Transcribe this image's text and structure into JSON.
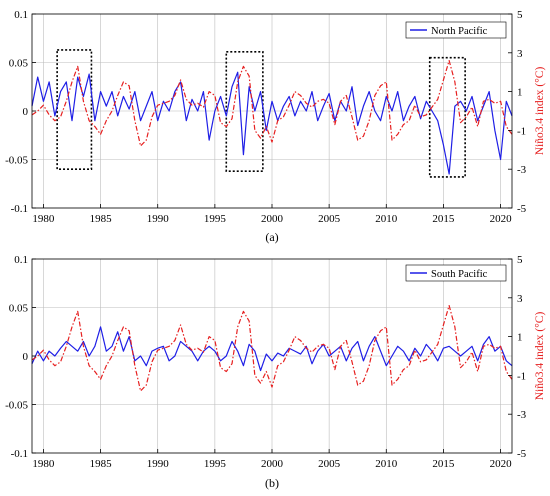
{
  "figure": {
    "panels": [
      {
        "caption": "(a)",
        "legend_label": "North Pacific",
        "right_axis_label": "Niño3.4 index (°C)"
      },
      {
        "caption": "(b)",
        "legend_label": "South Pacific",
        "right_axis_label": "Niño3.4 index (°C)"
      }
    ]
  },
  "chart_data": [
    {
      "type": "line",
      "title": "",
      "caption": "(a)",
      "xlabel": "",
      "ylabel": "",
      "y2label": "Niño3.4 index (°C)",
      "xlim": [
        1979,
        2021
      ],
      "ylim": [
        -0.1,
        0.1
      ],
      "y2lim": [
        -5,
        5
      ],
      "xticks": [
        1980,
        1985,
        1990,
        1995,
        2000,
        2005,
        2010,
        2015,
        2020
      ],
      "yticks": [
        -0.1,
        -0.05,
        0,
        0.05,
        0.1
      ],
      "yticklabels": [
        "-0.1",
        "-0.05",
        "0",
        "0.05",
        "0.1"
      ],
      "y2ticks": [
        -5,
        -3,
        -1,
        1,
        3,
        5
      ],
      "grid": true,
      "legend_position": "top-right",
      "highlight_boxes": [
        {
          "x": [
            1981.2,
            1984.2
          ],
          "y": [
            -0.06,
            0.063
          ]
        },
        {
          "x": [
            1996.0,
            1999.2
          ],
          "y": [
            -0.062,
            0.061
          ]
        },
        {
          "x": [
            2013.8,
            2016.9
          ],
          "y": [
            -0.068,
            0.055
          ]
        }
      ],
      "series": [
        {
          "name": "North Pacific",
          "axis": "left",
          "color": "#1f1fe6",
          "style": "solid",
          "x": [
            1979.0,
            1979.5,
            1980.0,
            1980.5,
            1981.0,
            1981.5,
            1982.0,
            1982.5,
            1983.0,
            1983.5,
            1984.0,
            1984.5,
            1985.0,
            1985.5,
            1986.0,
            1986.5,
            1987.0,
            1987.5,
            1988.0,
            1988.5,
            1989.0,
            1989.5,
            1990.0,
            1990.5,
            1991.0,
            1991.5,
            1992.0,
            1992.5,
            1993.0,
            1993.5,
            1994.0,
            1994.5,
            1995.0,
            1995.5,
            1996.0,
            1996.5,
            1997.0,
            1997.5,
            1998.0,
            1998.5,
            1999.0,
            1999.5,
            2000.0,
            2000.5,
            2001.0,
            2001.5,
            2002.0,
            2002.5,
            2003.0,
            2003.5,
            2004.0,
            2004.5,
            2005.0,
            2005.5,
            2006.0,
            2006.5,
            2007.0,
            2007.5,
            2008.0,
            2008.5,
            2009.0,
            2009.5,
            2010.0,
            2010.5,
            2011.0,
            2011.5,
            2012.0,
            2012.5,
            2013.0,
            2013.5,
            2014.0,
            2014.5,
            2015.0,
            2015.5,
            2016.0,
            2016.5,
            2017.0,
            2017.5,
            2018.0,
            2018.5,
            2019.0,
            2019.5,
            2020.0,
            2020.5,
            2021.0
          ],
          "values": [
            0.005,
            0.035,
            0.01,
            0.03,
            -0.005,
            0.02,
            0.03,
            -0.01,
            0.035,
            0.015,
            0.038,
            -0.01,
            0.02,
            0.005,
            0.02,
            -0.005,
            0.015,
            0.002,
            0.02,
            -0.01,
            0.005,
            0.02,
            -0.01,
            0.01,
            0.0,
            0.02,
            0.03,
            -0.01,
            0.012,
            0.0,
            0.02,
            -0.03,
            0.0,
            0.015,
            -0.005,
            0.025,
            0.04,
            -0.045,
            0.025,
            0.0,
            0.02,
            -0.02,
            0.01,
            -0.01,
            0.005,
            0.015,
            -0.005,
            0.01,
            0.0,
            0.02,
            -0.01,
            0.005,
            0.018,
            -0.01,
            0.01,
            0.0,
            0.025,
            -0.015,
            0.005,
            0.02,
            0.0,
            -0.01,
            0.015,
            0.0,
            0.02,
            -0.01,
            0.005,
            0.015,
            -0.008,
            0.01,
            0.0,
            -0.01,
            -0.035,
            -0.065,
            0.005,
            0.01,
            0.0,
            0.015,
            -0.01,
            0.005,
            0.02,
            -0.02,
            -0.05,
            0.01,
            -0.005
          ]
        },
        {
          "name": "Niño3.4 index",
          "axis": "right",
          "color": "#e62020",
          "style": "dash-dot",
          "x": [
            1979.0,
            1979.5,
            1980.0,
            1980.5,
            1981.0,
            1981.5,
            1982.0,
            1982.5,
            1983.0,
            1983.5,
            1984.0,
            1984.5,
            1985.0,
            1985.5,
            1986.0,
            1986.5,
            1987.0,
            1987.5,
            1988.0,
            1988.5,
            1989.0,
            1989.5,
            1990.0,
            1990.5,
            1991.0,
            1991.5,
            1992.0,
            1992.5,
            1993.0,
            1993.5,
            1994.0,
            1994.5,
            1995.0,
            1995.5,
            1996.0,
            1996.5,
            1997.0,
            1997.5,
            1998.0,
            1998.5,
            1999.0,
            1999.5,
            2000.0,
            2000.5,
            2001.0,
            2001.5,
            2002.0,
            2002.5,
            2003.0,
            2003.5,
            2004.0,
            2004.5,
            2005.0,
            2005.5,
            2006.0,
            2006.5,
            2007.0,
            2007.5,
            2008.0,
            2008.5,
            2009.0,
            2009.5,
            2010.0,
            2010.5,
            2011.0,
            2011.5,
            2012.0,
            2012.5,
            2013.0,
            2013.5,
            2014.0,
            2014.5,
            2015.0,
            2015.5,
            2016.0,
            2016.5,
            2017.0,
            2017.5,
            2018.0,
            2018.5,
            2019.0,
            2019.5,
            2020.0,
            2020.5,
            2021.0
          ],
          "values": [
            -0.2,
            0.0,
            0.3,
            -0.2,
            -0.5,
            -0.3,
            0.5,
            1.5,
            2.3,
            0.5,
            -0.5,
            -0.8,
            -1.2,
            -0.5,
            0.0,
            0.8,
            1.5,
            1.3,
            -0.5,
            -1.8,
            -1.5,
            -0.3,
            0.3,
            0.4,
            0.5,
            0.8,
            1.6,
            0.6,
            0.3,
            0.4,
            0.2,
            1.0,
            0.8,
            -0.6,
            -0.8,
            -0.4,
            1.5,
            2.3,
            1.8,
            -1.0,
            -1.4,
            -0.8,
            -1.6,
            -0.5,
            -0.3,
            0.3,
            1.0,
            0.8,
            0.4,
            0.2,
            0.5,
            0.6,
            0.4,
            -0.7,
            0.5,
            0.8,
            -0.3,
            -1.5,
            -1.3,
            -0.5,
            0.8,
            1.3,
            1.5,
            -1.5,
            -1.2,
            -0.7,
            -0.5,
            0.3,
            -0.3,
            -0.2,
            0.2,
            0.6,
            1.6,
            2.6,
            1.5,
            -0.6,
            -0.3,
            0.2,
            -0.8,
            0.5,
            0.6,
            0.4,
            0.5,
            -0.8,
            -1.2
          ]
        }
      ]
    },
    {
      "type": "line",
      "title": "",
      "caption": "(b)",
      "xlabel": "",
      "ylabel": "",
      "y2label": "Niño3.4 index (°C)",
      "xlim": [
        1979,
        2021
      ],
      "ylim": [
        -0.1,
        0.1
      ],
      "y2lim": [
        -5,
        5
      ],
      "xticks": [
        1980,
        1985,
        1990,
        1995,
        2000,
        2005,
        2010,
        2015,
        2020
      ],
      "yticks": [
        -0.1,
        -0.05,
        0,
        0.05,
        0.1
      ],
      "yticklabels": [
        "-0.1",
        "-0.05",
        "0",
        "0.05",
        "0.1"
      ],
      "y2ticks": [
        -5,
        -3,
        -1,
        1,
        3,
        5
      ],
      "grid": true,
      "legend_position": "top-right",
      "highlight_boxes": [],
      "series": [
        {
          "name": "South Pacific",
          "axis": "left",
          "color": "#1f1fe6",
          "style": "solid",
          "x": [
            1979.0,
            1979.5,
            1980.0,
            1980.5,
            1981.0,
            1981.5,
            1982.0,
            1982.5,
            1983.0,
            1983.5,
            1984.0,
            1984.5,
            1985.0,
            1985.5,
            1986.0,
            1986.5,
            1987.0,
            1987.5,
            1988.0,
            1988.5,
            1989.0,
            1989.5,
            1990.0,
            1990.5,
            1991.0,
            1991.5,
            1992.0,
            1992.5,
            1993.0,
            1993.5,
            1994.0,
            1994.5,
            1995.0,
            1995.5,
            1996.0,
            1996.5,
            1997.0,
            1997.5,
            1998.0,
            1998.5,
            1999.0,
            1999.5,
            2000.0,
            2000.5,
            2001.0,
            2001.5,
            2002.0,
            2002.5,
            2003.0,
            2003.5,
            2004.0,
            2004.5,
            2005.0,
            2005.5,
            2006.0,
            2006.5,
            2007.0,
            2007.5,
            2008.0,
            2008.5,
            2009.0,
            2009.5,
            2010.0,
            2010.5,
            2011.0,
            2011.5,
            2012.0,
            2012.5,
            2013.0,
            2013.5,
            2014.0,
            2014.5,
            2015.0,
            2015.5,
            2016.0,
            2016.5,
            2017.0,
            2017.5,
            2018.0,
            2018.5,
            2019.0,
            2019.5,
            2020.0,
            2020.5,
            2021.0
          ],
          "values": [
            -0.008,
            0.005,
            -0.005,
            0.005,
            0.0,
            0.008,
            0.015,
            0.01,
            0.005,
            0.015,
            0.0,
            0.01,
            0.03,
            0.005,
            0.01,
            0.025,
            0.005,
            0.02,
            -0.005,
            0.0,
            -0.01,
            0.005,
            0.008,
            0.01,
            -0.005,
            0.0,
            0.015,
            0.01,
            0.005,
            -0.005,
            0.005,
            0.01,
            0.005,
            -0.005,
            0.0,
            0.015,
            0.005,
            -0.01,
            0.012,
            0.005,
            -0.015,
            0.002,
            -0.005,
            0.003,
            0.0,
            0.008,
            0.005,
            0.002,
            0.01,
            -0.008,
            0.005,
            0.012,
            0.0,
            0.005,
            0.01,
            -0.005,
            0.008,
            0.015,
            -0.005,
            0.01,
            0.02,
            0.005,
            -0.01,
            0.0,
            0.01,
            0.005,
            -0.005,
            0.008,
            0.0,
            0.012,
            0.005,
            -0.005,
            0.008,
            0.01,
            0.005,
            0.0,
            0.005,
            0.01,
            -0.005,
            0.012,
            0.02,
            0.005,
            0.01,
            -0.005,
            -0.01
          ]
        },
        {
          "name": "Niño3.4 index",
          "axis": "right",
          "color": "#e62020",
          "style": "dash-dot",
          "x": [
            1979.0,
            1979.5,
            1980.0,
            1980.5,
            1981.0,
            1981.5,
            1982.0,
            1982.5,
            1983.0,
            1983.5,
            1984.0,
            1984.5,
            1985.0,
            1985.5,
            1986.0,
            1986.5,
            1987.0,
            1987.5,
            1988.0,
            1988.5,
            1989.0,
            1989.5,
            1990.0,
            1990.5,
            1991.0,
            1991.5,
            1992.0,
            1992.5,
            1993.0,
            1993.5,
            1994.0,
            1994.5,
            1995.0,
            1995.5,
            1996.0,
            1996.5,
            1997.0,
            1997.5,
            1998.0,
            1998.5,
            1999.0,
            1999.5,
            2000.0,
            2000.5,
            2001.0,
            2001.5,
            2002.0,
            2002.5,
            2003.0,
            2003.5,
            2004.0,
            2004.5,
            2005.0,
            2005.5,
            2006.0,
            2006.5,
            2007.0,
            2007.5,
            2008.0,
            2008.5,
            2009.0,
            2009.5,
            2010.0,
            2010.5,
            2011.0,
            2011.5,
            2012.0,
            2012.5,
            2013.0,
            2013.5,
            2014.0,
            2014.5,
            2015.0,
            2015.5,
            2016.0,
            2016.5,
            2017.0,
            2017.5,
            2018.0,
            2018.5,
            2019.0,
            2019.5,
            2020.0,
            2020.5,
            2021.0
          ],
          "values": [
            -0.2,
            0.0,
            0.3,
            -0.2,
            -0.5,
            -0.3,
            0.5,
            1.5,
            2.3,
            0.5,
            -0.5,
            -0.8,
            -1.2,
            -0.5,
            0.0,
            0.8,
            1.5,
            1.3,
            -0.5,
            -1.8,
            -1.5,
            -0.3,
            0.3,
            0.4,
            0.5,
            0.8,
            1.6,
            0.6,
            0.3,
            0.4,
            0.2,
            1.0,
            0.8,
            -0.6,
            -0.8,
            -0.4,
            1.5,
            2.3,
            1.8,
            -1.0,
            -1.4,
            -0.8,
            -1.6,
            -0.5,
            -0.3,
            0.3,
            1.0,
            0.8,
            0.4,
            0.2,
            0.5,
            0.6,
            0.4,
            -0.7,
            0.5,
            0.8,
            -0.3,
            -1.5,
            -1.3,
            -0.5,
            0.8,
            1.3,
            1.5,
            -1.5,
            -1.2,
            -0.7,
            -0.5,
            0.3,
            -0.3,
            -0.2,
            0.2,
            0.6,
            1.6,
            2.6,
            1.5,
            -0.6,
            -0.3,
            0.2,
            -0.8,
            0.5,
            0.6,
            0.4,
            0.5,
            -0.8,
            -1.2
          ]
        }
      ]
    }
  ]
}
